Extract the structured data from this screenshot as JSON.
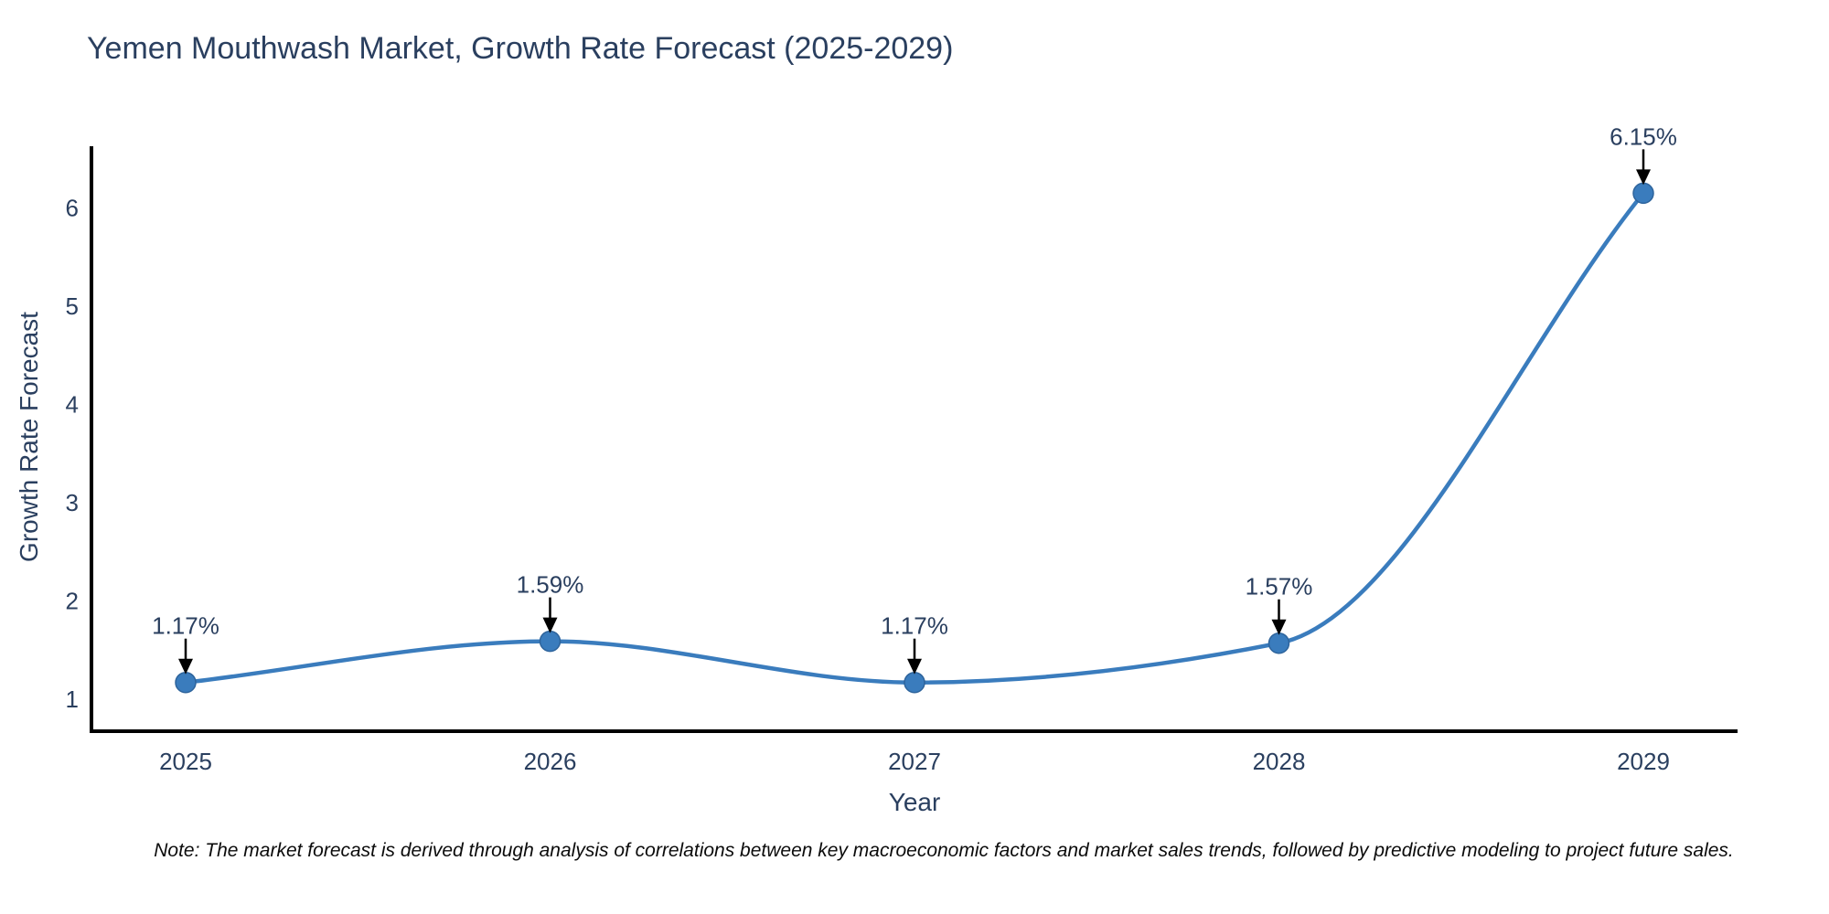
{
  "page": {
    "background": "#ffffff"
  },
  "chart_data": {
    "type": "line",
    "title": "Yemen Mouthwash Market, Growth Rate Forecast (2025-2029)",
    "xlabel": "Year",
    "ylabel": "Growth Rate Forecast",
    "x": [
      2025,
      2026,
      2027,
      2028,
      2029
    ],
    "y": [
      1.17,
      1.59,
      1.17,
      1.57,
      6.15
    ],
    "point_labels": [
      "1.17%",
      "1.59%",
      "1.17%",
      "1.57%",
      "6.15%"
    ],
    "x_tick_labels": [
      "2025",
      "2026",
      "2027",
      "2028",
      "2029"
    ],
    "y_tick_values": [
      1,
      2,
      3,
      4,
      5,
      6
    ],
    "y_tick_labels": [
      "1",
      "2",
      "3",
      "4",
      "5",
      "6"
    ],
    "xlim": [
      2024.74,
      2029.26
    ],
    "ylim": [
      0.67,
      6.63
    ],
    "grid": false,
    "legend": false,
    "line_shape": "spline",
    "marker": "circle",
    "annotation_style": "value-label-with-down-arrow",
    "note": "Note: The market forecast is derived through analysis of correlations between key macroeconomic factors and market sales trends, followed by predictive modeling to project future sales."
  },
  "colors": {
    "line": "#3a7cbd",
    "marker_fill": "#3a7cbd",
    "marker_edge": "#2e649c",
    "axis_line": "#000000",
    "tick_label": "#2a3f5f",
    "annotation_text": "#2a3f5f",
    "annotation_arrow": "#000000",
    "title_text": "#2a3f5f",
    "note_text": "#0b0b0b"
  }
}
